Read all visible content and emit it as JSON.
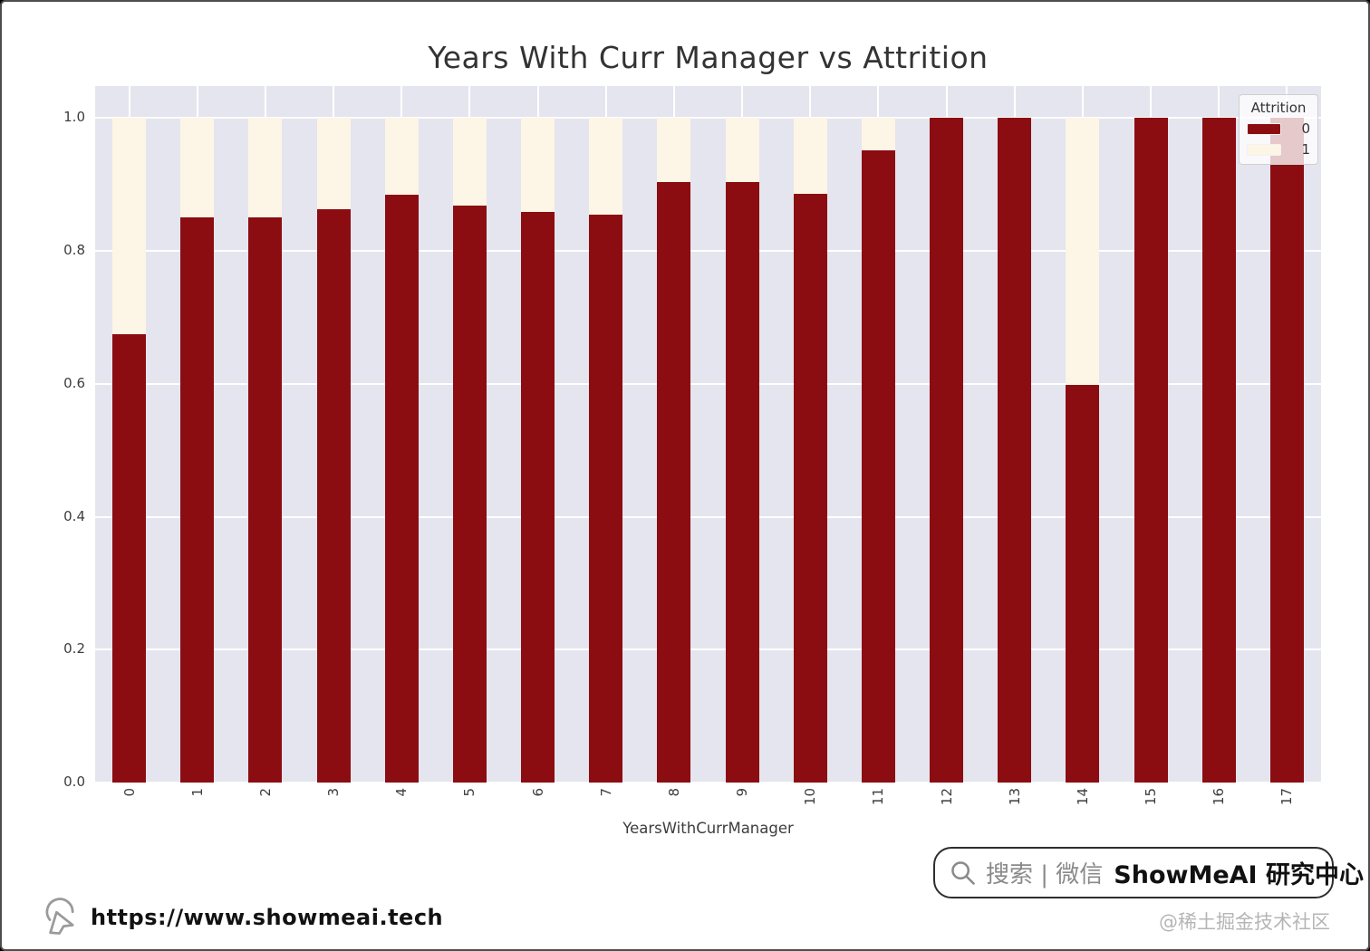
{
  "chart_data": {
    "type": "bar",
    "stacked": true,
    "normalized": true,
    "title": "Years With Curr Manager vs Attrition",
    "xlabel": "YearsWithCurrManager",
    "ylabel": "",
    "categories": [
      "0",
      "1",
      "2",
      "3",
      "4",
      "5",
      "6",
      "7",
      "8",
      "9",
      "10",
      "11",
      "12",
      "13",
      "14",
      "15",
      "16",
      "17"
    ],
    "series": [
      {
        "name": "0",
        "color": "#8b0d12",
        "values": [
          0.675,
          0.851,
          0.851,
          0.862,
          0.884,
          0.868,
          0.859,
          0.854,
          0.903,
          0.903,
          0.886,
          0.951,
          1.0,
          1.0,
          0.598,
          1.0,
          1.0,
          1.0
        ]
      },
      {
        "name": "1",
        "color": "#fdf5e6",
        "values": [
          0.325,
          0.149,
          0.149,
          0.138,
          0.116,
          0.132,
          0.141,
          0.146,
          0.097,
          0.097,
          0.114,
          0.049,
          0.0,
          0.0,
          0.402,
          0.0,
          0.0,
          0.0
        ]
      }
    ],
    "ytick_labels": [
      "0.0",
      "0.2",
      "0.4",
      "0.6",
      "0.8",
      "1.0"
    ],
    "ylim": [
      0,
      1.048
    ],
    "legend_title": "Attrition",
    "legend_position": "upper right",
    "grid": true,
    "plot_bg": "#e5e5ef",
    "grid_color": "#ffffff"
  },
  "footer": {
    "url": "https://www.showmeai.tech",
    "search_prefix": "搜索 | 微信",
    "search_brand": "ShowMeAI 研究中心",
    "credit": "@稀土掘金技术社区"
  }
}
